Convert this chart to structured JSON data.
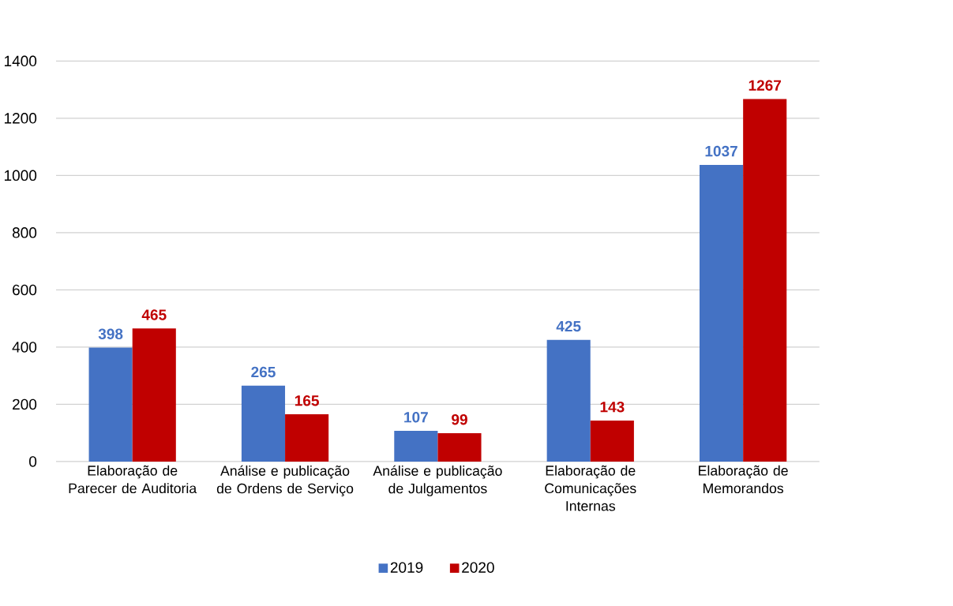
{
  "chart_data": {
    "type": "bar",
    "categories": [
      "Elaboração de Parecer de Auditoria",
      "Análise e publicação de Ordens de Serviço",
      "Análise e publicação de Julgamentos",
      "Elaboração de Comunicações Internas",
      "Elaboração de Memorandos"
    ],
    "series": [
      {
        "name": "2019",
        "color": "#4472c4",
        "values": [
          398,
          265,
          107,
          425,
          1037
        ]
      },
      {
        "name": "2020",
        "color": "#c00000",
        "values": [
          465,
          165,
          99,
          143,
          1267
        ]
      }
    ],
    "ylim": [
      0,
      1400
    ],
    "yticks": [
      0,
      200,
      400,
      600,
      800,
      1000,
      1200,
      1400
    ],
    "grid": "y",
    "legend": "bottom",
    "data_labels": true
  }
}
